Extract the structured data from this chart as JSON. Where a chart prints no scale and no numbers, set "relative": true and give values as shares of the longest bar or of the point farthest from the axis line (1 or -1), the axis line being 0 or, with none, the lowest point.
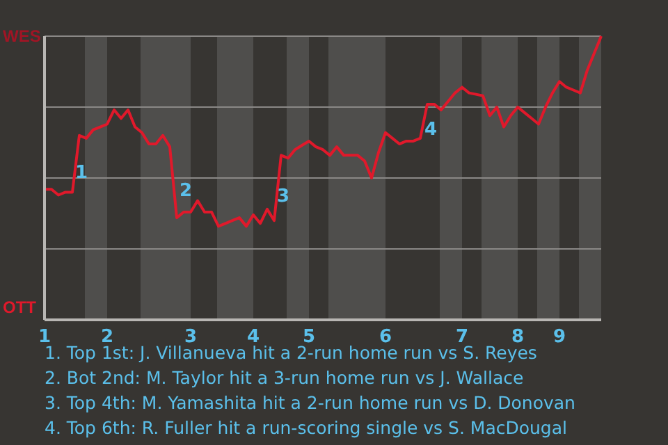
{
  "chart_data": {
    "type": "line",
    "relative": true,
    "categories": [
      "1",
      null,
      null,
      null,
      null,
      null,
      null,
      null,
      null,
      "2",
      null,
      null,
      null,
      null,
      null,
      null,
      null,
      null,
      null,
      null,
      null,
      "3",
      null,
      null,
      null,
      null,
      null,
      null,
      null,
      null,
      "4",
      null,
      null,
      null,
      null,
      null,
      null,
      null,
      "5",
      null,
      null,
      null,
      null,
      null,
      null,
      null,
      null,
      null,
      null,
      "6",
      null,
      null,
      null,
      null,
      null,
      null,
      null,
      null,
      null,
      null,
      "7",
      null,
      null,
      null,
      null,
      null,
      null,
      null,
      "8",
      null,
      null,
      null,
      null,
      null,
      "9",
      null,
      null,
      null,
      null,
      null,
      null
    ],
    "series": [
      {
        "color": "#e0192b",
        "values": [
          0.46,
          0.46,
          0.44,
          0.45,
          0.45,
          0.65,
          0.64,
          0.67,
          0.68,
          0.69,
          0.74,
          0.71,
          0.74,
          0.68,
          0.66,
          0.62,
          0.62,
          0.65,
          0.61,
          0.36,
          0.38,
          0.38,
          0.42,
          0.38,
          0.38,
          0.33,
          0.34,
          0.35,
          0.36,
          0.33,
          0.37,
          0.34,
          0.39,
          0.35,
          0.58,
          0.57,
          0.6,
          0.615,
          0.63,
          0.61,
          0.6,
          0.58,
          0.61,
          0.58,
          0.58,
          0.58,
          0.56,
          0.5,
          0.59,
          0.66,
          0.64,
          0.62,
          0.63,
          0.63,
          0.64,
          0.76,
          0.76,
          0.74,
          0.77,
          0.8,
          0.82,
          0.8,
          0.795,
          0.79,
          0.72,
          0.75,
          0.68,
          0.72,
          0.75,
          0.73,
          0.71,
          0.69,
          0.75,
          0.8,
          0.84,
          0.82,
          0.81,
          0.8,
          0.88,
          0.94,
          1
        ]
      }
    ],
    "grid": "y",
    "legend": false,
    "marker": "none",
    "line_style": "solid",
    "annotations": [
      "WES",
      "OTT",
      "1",
      "2",
      "3",
      "4",
      "1. Top 1st: J. Villanueva hit a 2-run home run vs S. Reyes",
      "2. Bot 2nd: M. Taylor hit a 3-run home run vs J. Wallace",
      "3. Top 4th: M. Yamashita hit a 2-run home run vs D. Donovan",
      "4. Top 6th: R. Fuller hit a run-scoring single vs S. MacDougal"
    ]
  }
}
